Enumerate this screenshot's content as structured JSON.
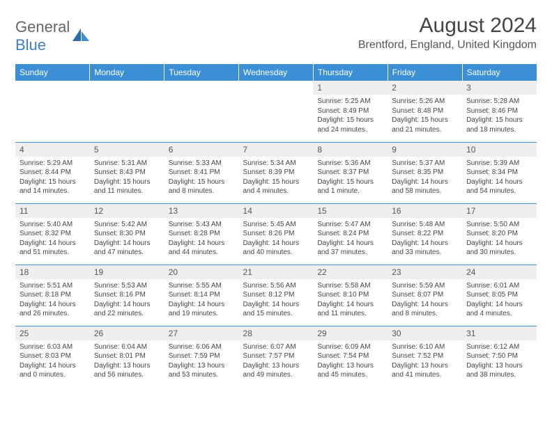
{
  "logo": {
    "text1": "General",
    "text2": "Blue"
  },
  "title": "August 2024",
  "location": "Brentford, England, United Kingdom",
  "header_bg": "#3b8fd4",
  "divider_color": "#3b8fd4",
  "daynum_bg": "#eeeeee",
  "weekdays": [
    "Sunday",
    "Monday",
    "Tuesday",
    "Wednesday",
    "Thursday",
    "Friday",
    "Saturday"
  ],
  "weeks": [
    [
      null,
      null,
      null,
      null,
      {
        "n": "1",
        "sr": "5:25 AM",
        "ss": "8:49 PM",
        "dl": "15 hours and 24 minutes."
      },
      {
        "n": "2",
        "sr": "5:26 AM",
        "ss": "8:48 PM",
        "dl": "15 hours and 21 minutes."
      },
      {
        "n": "3",
        "sr": "5:28 AM",
        "ss": "8:46 PM",
        "dl": "15 hours and 18 minutes."
      }
    ],
    [
      {
        "n": "4",
        "sr": "5:29 AM",
        "ss": "8:44 PM",
        "dl": "15 hours and 14 minutes."
      },
      {
        "n": "5",
        "sr": "5:31 AM",
        "ss": "8:43 PM",
        "dl": "15 hours and 11 minutes."
      },
      {
        "n": "6",
        "sr": "5:33 AM",
        "ss": "8:41 PM",
        "dl": "15 hours and 8 minutes."
      },
      {
        "n": "7",
        "sr": "5:34 AM",
        "ss": "8:39 PM",
        "dl": "15 hours and 4 minutes."
      },
      {
        "n": "8",
        "sr": "5:36 AM",
        "ss": "8:37 PM",
        "dl": "15 hours and 1 minute."
      },
      {
        "n": "9",
        "sr": "5:37 AM",
        "ss": "8:35 PM",
        "dl": "14 hours and 58 minutes."
      },
      {
        "n": "10",
        "sr": "5:39 AM",
        "ss": "8:34 PM",
        "dl": "14 hours and 54 minutes."
      }
    ],
    [
      {
        "n": "11",
        "sr": "5:40 AM",
        "ss": "8:32 PM",
        "dl": "14 hours and 51 minutes."
      },
      {
        "n": "12",
        "sr": "5:42 AM",
        "ss": "8:30 PM",
        "dl": "14 hours and 47 minutes."
      },
      {
        "n": "13",
        "sr": "5:43 AM",
        "ss": "8:28 PM",
        "dl": "14 hours and 44 minutes."
      },
      {
        "n": "14",
        "sr": "5:45 AM",
        "ss": "8:26 PM",
        "dl": "14 hours and 40 minutes."
      },
      {
        "n": "15",
        "sr": "5:47 AM",
        "ss": "8:24 PM",
        "dl": "14 hours and 37 minutes."
      },
      {
        "n": "16",
        "sr": "5:48 AM",
        "ss": "8:22 PM",
        "dl": "14 hours and 33 minutes."
      },
      {
        "n": "17",
        "sr": "5:50 AM",
        "ss": "8:20 PM",
        "dl": "14 hours and 30 minutes."
      }
    ],
    [
      {
        "n": "18",
        "sr": "5:51 AM",
        "ss": "8:18 PM",
        "dl": "14 hours and 26 minutes."
      },
      {
        "n": "19",
        "sr": "5:53 AM",
        "ss": "8:16 PM",
        "dl": "14 hours and 22 minutes."
      },
      {
        "n": "20",
        "sr": "5:55 AM",
        "ss": "8:14 PM",
        "dl": "14 hours and 19 minutes."
      },
      {
        "n": "21",
        "sr": "5:56 AM",
        "ss": "8:12 PM",
        "dl": "14 hours and 15 minutes."
      },
      {
        "n": "22",
        "sr": "5:58 AM",
        "ss": "8:10 PM",
        "dl": "14 hours and 11 minutes."
      },
      {
        "n": "23",
        "sr": "5:59 AM",
        "ss": "8:07 PM",
        "dl": "14 hours and 8 minutes."
      },
      {
        "n": "24",
        "sr": "6:01 AM",
        "ss": "8:05 PM",
        "dl": "14 hours and 4 minutes."
      }
    ],
    [
      {
        "n": "25",
        "sr": "6:03 AM",
        "ss": "8:03 PM",
        "dl": "14 hours and 0 minutes."
      },
      {
        "n": "26",
        "sr": "6:04 AM",
        "ss": "8:01 PM",
        "dl": "13 hours and 56 minutes."
      },
      {
        "n": "27",
        "sr": "6:06 AM",
        "ss": "7:59 PM",
        "dl": "13 hours and 53 minutes."
      },
      {
        "n": "28",
        "sr": "6:07 AM",
        "ss": "7:57 PM",
        "dl": "13 hours and 49 minutes."
      },
      {
        "n": "29",
        "sr": "6:09 AM",
        "ss": "7:54 PM",
        "dl": "13 hours and 45 minutes."
      },
      {
        "n": "30",
        "sr": "6:10 AM",
        "ss": "7:52 PM",
        "dl": "13 hours and 41 minutes."
      },
      {
        "n": "31",
        "sr": "6:12 AM",
        "ss": "7:50 PM",
        "dl": "13 hours and 38 minutes."
      }
    ]
  ]
}
